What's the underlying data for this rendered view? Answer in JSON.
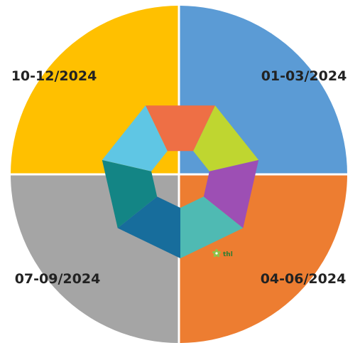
{
  "quadrants": [
    {
      "label": "01-03/2024",
      "color": "#5B9BD5"
    },
    {
      "label": "04-06/2024",
      "color": "#ED7D31"
    },
    {
      "label": "07-09/2024",
      "color": "#A5A5A5"
    },
    {
      "label": "10-12/2024",
      "color": "#FFC000"
    }
  ],
  "center_segments": [
    {
      "color": "#EE6F45"
    },
    {
      "color": "#BFD630"
    },
    {
      "color": "#9D4FB4"
    },
    {
      "color": "#4FBAB3"
    },
    {
      "color": "#176D9C"
    },
    {
      "color": "#138585"
    },
    {
      "color": "#5FC6E4"
    }
  ],
  "logo": {
    "text": "thl",
    "icon": "star-flower-icon",
    "color": "#8BC34A"
  }
}
